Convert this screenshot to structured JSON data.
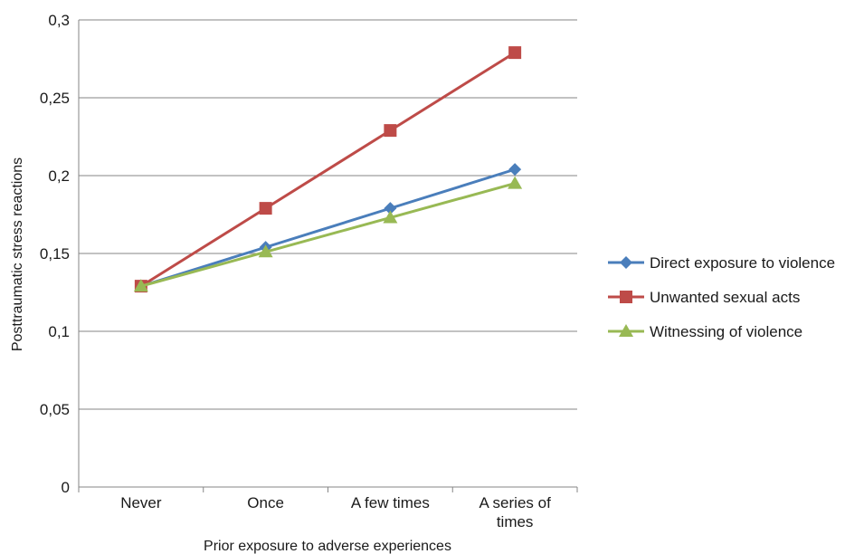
{
  "chart_data": {
    "type": "line",
    "title": "",
    "xlabel": "Prior exposure to adverse experiences",
    "ylabel": "Posttraumatic stress reactions",
    "categories": [
      [
        "Never"
      ],
      [
        "Once"
      ],
      [
        "A few times"
      ],
      [
        "A series of",
        "times"
      ]
    ],
    "ylim": [
      0,
      0.3
    ],
    "yticks": [
      0,
      0.05,
      0.1,
      0.15,
      0.2,
      0.25,
      0.3
    ],
    "ytick_labels": [
      "0",
      "0,05",
      "0,1",
      "0,15",
      "0,2",
      "0,25",
      "0,3"
    ],
    "grid": true,
    "legend_position": "right",
    "series": [
      {
        "name": "Direct exposure to violence",
        "color": "#4a7ebb",
        "marker": "diamond",
        "values": [
          0.129,
          0.154,
          0.179,
          0.204
        ]
      },
      {
        "name": "Unwanted sexual acts",
        "color": "#be4b48",
        "marker": "square",
        "values": [
          0.129,
          0.179,
          0.229,
          0.279
        ]
      },
      {
        "name": "Witnessing of violence",
        "color": "#98b954",
        "marker": "triangle",
        "values": [
          0.129,
          0.151,
          0.173,
          0.195
        ]
      }
    ]
  }
}
